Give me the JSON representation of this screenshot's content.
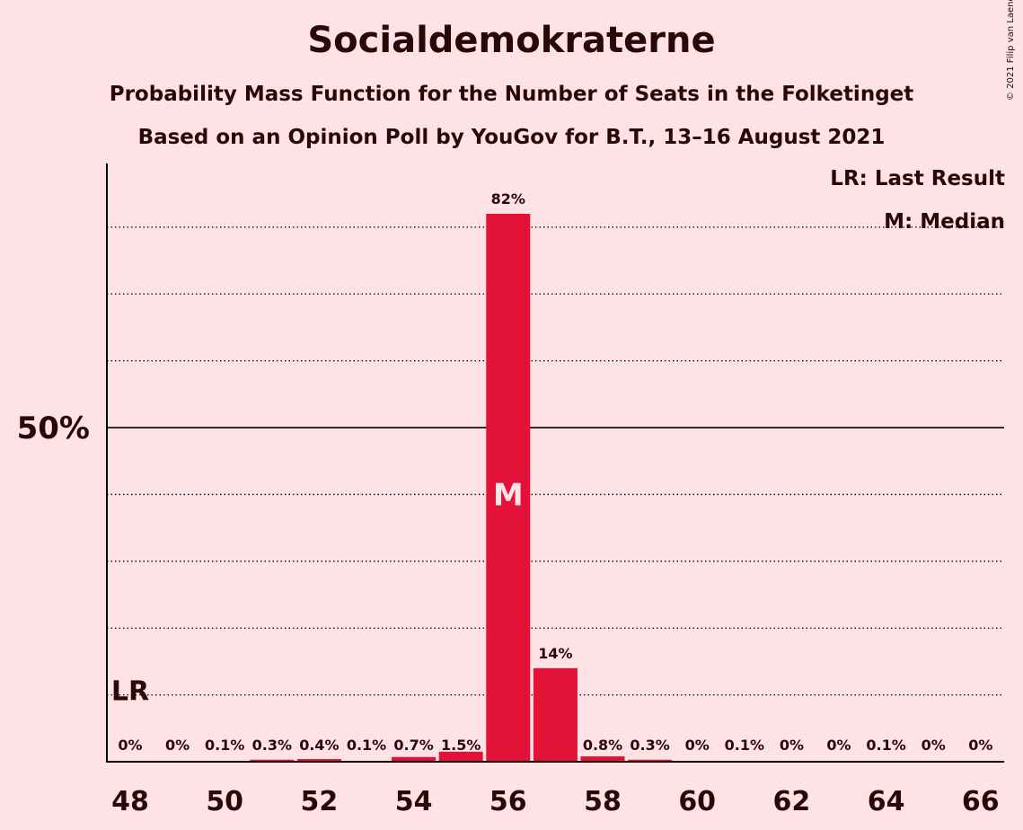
{
  "title": "Socialdemokraterne",
  "subtitle1": "Probability Mass Function for the Number of Seats in the Folketinget",
  "subtitle2": "Based on an Opinion Poll by YouGov for B.T., 13–16 August 2021",
  "copyright": "© 2021 Filip van Laenen",
  "legend": {
    "lr": "LR: Last Result",
    "m": "M: Median"
  },
  "colors": {
    "bar": "#E21239",
    "background": "#FFE2E6",
    "axis": "#000000"
  },
  "chart_data": {
    "type": "bar",
    "categories": [
      48,
      49,
      50,
      51,
      52,
      53,
      54,
      55,
      56,
      57,
      58,
      59,
      60,
      61,
      62,
      63,
      64,
      65,
      66
    ],
    "values": [
      0,
      0,
      0.1,
      0.3,
      0.4,
      0.1,
      0.7,
      1.5,
      82,
      14,
      0.8,
      0.3,
      0,
      0.1,
      0,
      0,
      0.1,
      0,
      0
    ],
    "value_labels": [
      "0%",
      "0%",
      "0.1%",
      "0.3%",
      "0.4%",
      "0.1%",
      "0.7%",
      "1.5%",
      "82%",
      "14%",
      "0.8%",
      "0.3%",
      "0%",
      "0.1%",
      "0%",
      "0%",
      "0.1%",
      "0%",
      "0%"
    ],
    "x_tick_labels": [
      "48",
      "50",
      "52",
      "54",
      "56",
      "58",
      "60",
      "62",
      "64",
      "66"
    ],
    "y_tick_label": "50%",
    "ylim": [
      0,
      89
    ],
    "gridlines": [
      10,
      20,
      30,
      40,
      60,
      70,
      80
    ],
    "solid_line": 50,
    "last_result_seat": 48,
    "last_result_label": "LR",
    "median_seat": 56,
    "median_label": "M"
  }
}
